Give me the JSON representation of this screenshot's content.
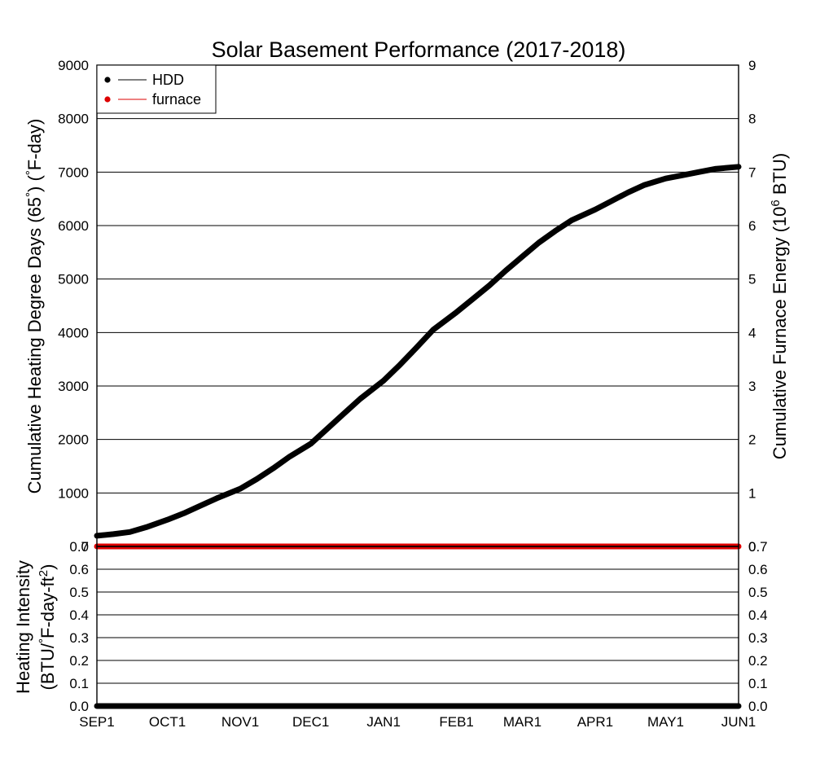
{
  "chart_data": [
    {
      "type": "line",
      "title": "Solar Basement Performance (2017-2018)",
      "ylabel": "Cumulative Heating Degree Days (65°) (°F-day)",
      "ylabel_parts": [
        "Cumulative Heating Degree Days (65",
        "°",
        ") (",
        "°",
        "F-day)"
      ],
      "ylabel_right": "Cumulative Furnace Energy (10⁶ BTU)",
      "ylabel_right_parts": [
        "Cumulative Furnace Energy (10",
        "6",
        " BTU)"
      ],
      "ylim": [
        0,
        9000
      ],
      "yticks": [
        "0",
        "1000",
        "2000",
        "3000",
        "4000",
        "5000",
        "6000",
        "7000",
        "8000",
        "9000"
      ],
      "ylim_right": [
        0,
        9
      ],
      "yticks_right": [
        "0",
        "1",
        "2",
        "3",
        "4",
        "5",
        "6",
        "7",
        "8",
        "9"
      ],
      "grid": true,
      "legend_placement": "top-left",
      "series": [
        {
          "name": "HDD",
          "color": "#000000",
          "axis": "left",
          "x": [
            "2017-09-01",
            "2017-09-08",
            "2017-09-15",
            "2017-09-22",
            "2017-10-01",
            "2017-10-08",
            "2017-10-15",
            "2017-10-22",
            "2017-11-01",
            "2017-11-08",
            "2017-11-15",
            "2017-11-22",
            "2017-12-01",
            "2017-12-08",
            "2017-12-15",
            "2017-12-22",
            "2018-01-01",
            "2018-01-08",
            "2018-01-15",
            "2018-01-22",
            "2018-02-01",
            "2018-02-08",
            "2018-02-15",
            "2018-02-22",
            "2018-03-01",
            "2018-03-08",
            "2018-03-15",
            "2018-03-22",
            "2018-04-01",
            "2018-04-08",
            "2018-04-15",
            "2018-04-22",
            "2018-05-01",
            "2018-05-08",
            "2018-05-15",
            "2018-05-22",
            "2018-06-01"
          ],
          "values": [
            200,
            230,
            270,
            360,
            500,
            620,
            760,
            900,
            1080,
            1260,
            1460,
            1680,
            1920,
            2200,
            2480,
            2760,
            3100,
            3400,
            3720,
            4050,
            4380,
            4630,
            4880,
            5160,
            5420,
            5680,
            5900,
            6100,
            6300,
            6460,
            6620,
            6760,
            6880,
            6940,
            7000,
            7060,
            7100
          ]
        },
        {
          "name": "furnace",
          "color": "#dd0000",
          "axis": "right",
          "x": [
            "2017-09-01",
            "2018-06-01"
          ],
          "values": [
            0,
            0
          ]
        }
      ]
    },
    {
      "type": "line",
      "title": "",
      "ylabel": "Heating Intensity (BTU/°F-day-ft²)",
      "ylabel_line1": "Heating Intensity",
      "ylabel_line2_parts": [
        "(BTU/",
        "°",
        "F-day-ft",
        "2",
        ")"
      ],
      "ylim": [
        0,
        0.7
      ],
      "yticks": [
        "0.0",
        "0.1",
        "0.2",
        "0.3",
        "0.4",
        "0.5",
        "0.6",
        "0.7"
      ],
      "x_tick_labels": [
        "SEP1",
        "OCT1",
        "NOV1",
        "DEC1",
        "JAN1",
        "FEB1",
        "MAR1",
        "APR1",
        "MAY1",
        "JUN1"
      ],
      "x_tick_dates": [
        "2017-09-01",
        "2017-10-01",
        "2017-11-01",
        "2017-12-01",
        "2018-01-01",
        "2018-02-01",
        "2018-03-01",
        "2018-04-01",
        "2018-05-01",
        "2018-06-01"
      ],
      "grid": true,
      "series": [
        {
          "name": "",
          "color": "#000000",
          "x": [
            "2017-09-01",
            "2018-06-01"
          ],
          "values": [
            0,
            0
          ]
        }
      ]
    }
  ]
}
